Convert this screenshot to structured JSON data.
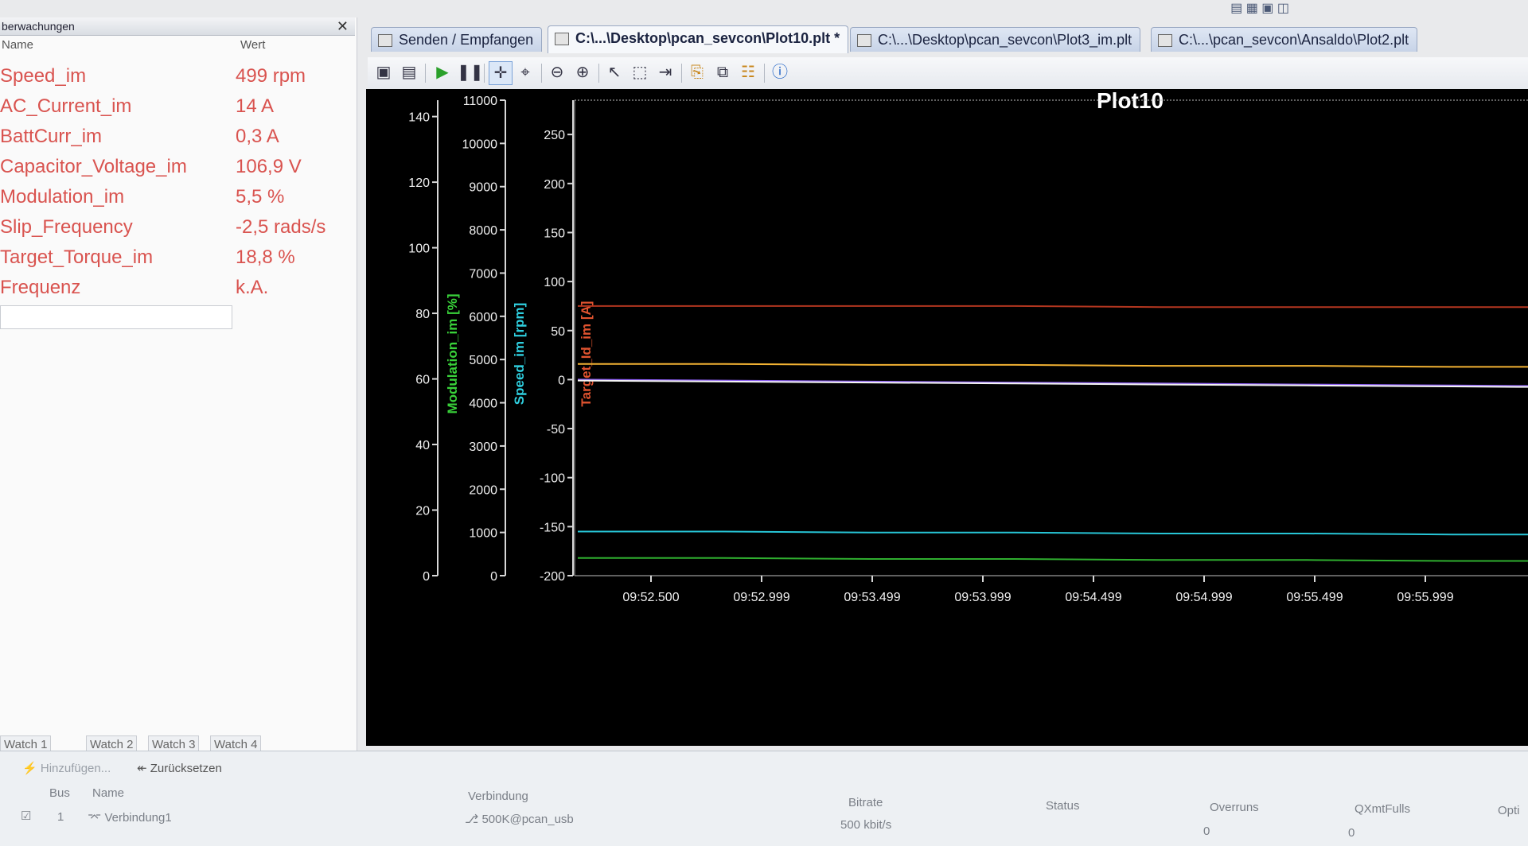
{
  "watch": {
    "title": "berwachungen",
    "col_name": "Name",
    "col_value": "Wert",
    "rows": [
      {
        "name": "Speed_im",
        "value": "499 rpm"
      },
      {
        "name": "AC_Current_im",
        "value": "14 A"
      },
      {
        "name": "BattCurr_im",
        "value": "0,3 A"
      },
      {
        "name": "Capacitor_Voltage_im",
        "value": "106,9 V"
      },
      {
        "name": "Modulation_im",
        "value": "5,5 %"
      },
      {
        "name": "Slip_Frequency",
        "value": "-2,5 rads/s"
      },
      {
        "name": "Target_Torque_im",
        "value": "18,8 %"
      },
      {
        "name": "Frequenz",
        "value": "k.A."
      }
    ],
    "tabs": [
      "Watch 1",
      "Watch 2",
      "Watch 3",
      "Watch 4"
    ]
  },
  "tabs": [
    {
      "label": "Senden / Empfangen"
    },
    {
      "label": "C:\\...\\Desktop\\pcan_sevcon\\Plot10.plt *"
    },
    {
      "label": "C:\\...\\Desktop\\pcan_sevcon\\Plot3_im.plt"
    },
    {
      "label": "C:\\...\\pcan_sevcon\\Ansaldo\\Plot2.plt"
    }
  ],
  "toolbar": {
    "icons": [
      "save-icon",
      "save-all-icon",
      "play-icon",
      "pause-icon",
      "crosshair-icon",
      "zoom-cursor-icon",
      "zoom-out-icon",
      "zoom-in-icon",
      "pointer-icon",
      "select-rect-icon",
      "fit-icon",
      "export-icon",
      "copy-icon",
      "properties-icon",
      "info-icon"
    ]
  },
  "chart_data": {
    "type": "line",
    "title": "Plot10",
    "x_ticks": [
      "09:52.500",
      "09:52.999",
      "09:53.499",
      "09:53.999",
      "09:54.499",
      "09:54.999",
      "09:55.499",
      "09:55.999"
    ],
    "axes": [
      {
        "label": "Modulation_im [%]",
        "color": "#39d23a",
        "min": 0,
        "max": 145,
        "ticks": [
          0,
          20,
          40,
          60,
          80,
          100,
          120,
          140
        ]
      },
      {
        "label": "Speed_im [rpm]",
        "color": "#2fd0e0",
        "min": 0,
        "max": 11000,
        "ticks": [
          0,
          1000,
          2000,
          3000,
          4000,
          5000,
          6000,
          7000,
          8000,
          9000,
          10000,
          11000
        ]
      },
      {
        "label": "Target_Id_im [A]",
        "color": "#e0532f",
        "min": -200,
        "max": 285,
        "ticks": [
          -200,
          -150,
          -100,
          -50,
          0,
          50,
          100,
          150,
          200,
          250
        ]
      }
    ],
    "series": [
      {
        "color": "#b3361f",
        "axis": 2,
        "values": [
          75,
          75,
          75,
          75,
          74,
          74,
          74,
          74
        ]
      },
      {
        "color": "#f2b233",
        "axis": 2,
        "values": [
          16,
          16,
          15,
          15,
          14,
          14,
          13,
          13
        ]
      },
      {
        "color": "#8a5cf0",
        "axis": 2,
        "values": [
          0,
          -1,
          -2,
          -3,
          -4,
          -5,
          -6,
          -7
        ]
      },
      {
        "color": "#f4f4f4",
        "axis": 2,
        "values": [
          -1,
          -2,
          -3,
          -4,
          -5,
          -6,
          -7,
          -8
        ]
      },
      {
        "color": "#27c5d6",
        "axis": 2,
        "values": [
          -155,
          -155,
          -156,
          -156,
          -157,
          -157,
          -158,
          -158
        ]
      },
      {
        "color": "#2fae2f",
        "axis": 2,
        "values": [
          -182,
          -182,
          -183,
          -183,
          -184,
          -184,
          -185,
          -185
        ]
      }
    ]
  },
  "bottom": {
    "add_label": "Hinzufügen...",
    "reset_label": "Zurücksetzen",
    "headers": {
      "bus": "Bus",
      "name": "Name",
      "connection": "Verbindung",
      "bitrate": "Bitrate",
      "status": "Status",
      "overruns": "Overruns",
      "qxmt": "QXmtFulls",
      "opti": "Opti"
    },
    "row": {
      "bus": "1",
      "name": "Verbindung1",
      "connection": "500K@pcan_usb",
      "bitrate": "500 kbit/s",
      "status": "",
      "overruns": "0",
      "qxmt": "0"
    }
  }
}
